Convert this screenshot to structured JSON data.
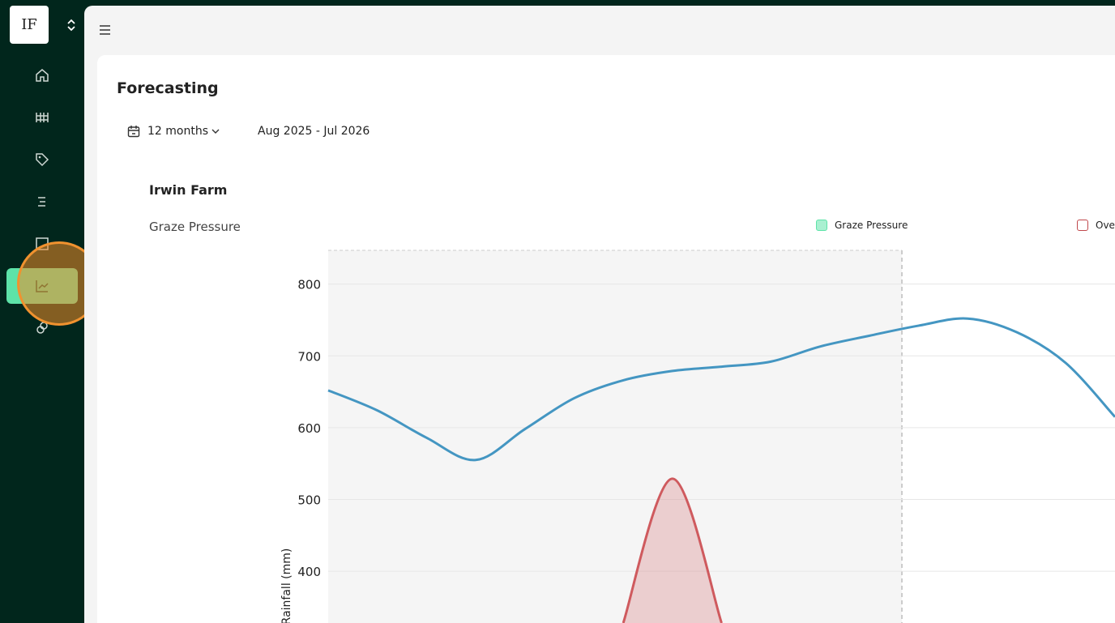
{
  "sidebar": {
    "logo": "IF"
  },
  "page": {
    "title": "Forecasting",
    "period": "12 months",
    "range": "Aug 2025 - Jul 2026",
    "farm": "Irwin Farm",
    "section": "Graze Pressure"
  },
  "chart_data": {
    "type": "line",
    "y_label": "Rainfall (mm)",
    "categories": [
      null,
      null,
      null,
      null,
      null,
      null,
      null,
      null,
      null,
      null,
      null,
      null,
      null,
      null,
      null,
      null,
      null
    ],
    "legend": [
      {
        "name": "Graze Pressure",
        "color": "#5de3a8"
      },
      {
        "name": "Ove",
        "color": "#c0484c"
      }
    ],
    "series": [
      {
        "color": "#4496c2",
        "values": [
          652,
          624,
          586,
          555,
          598,
          641,
          666,
          679,
          685,
          692,
          713,
          728,
          742,
          752,
          733,
          690,
          615
        ]
      },
      {
        "color": "#cf5a5e",
        "area": true,
        "values": [
          null,
          null,
          null,
          null,
          null,
          null,
          328,
          529,
          328,
          null,
          null,
          null,
          null,
          null,
          null,
          null,
          null
        ]
      }
    ],
    "ylim": [
      328,
      847
    ],
    "yticks": [
      400,
      500,
      600,
      700,
      800
    ],
    "grid": true
  }
}
